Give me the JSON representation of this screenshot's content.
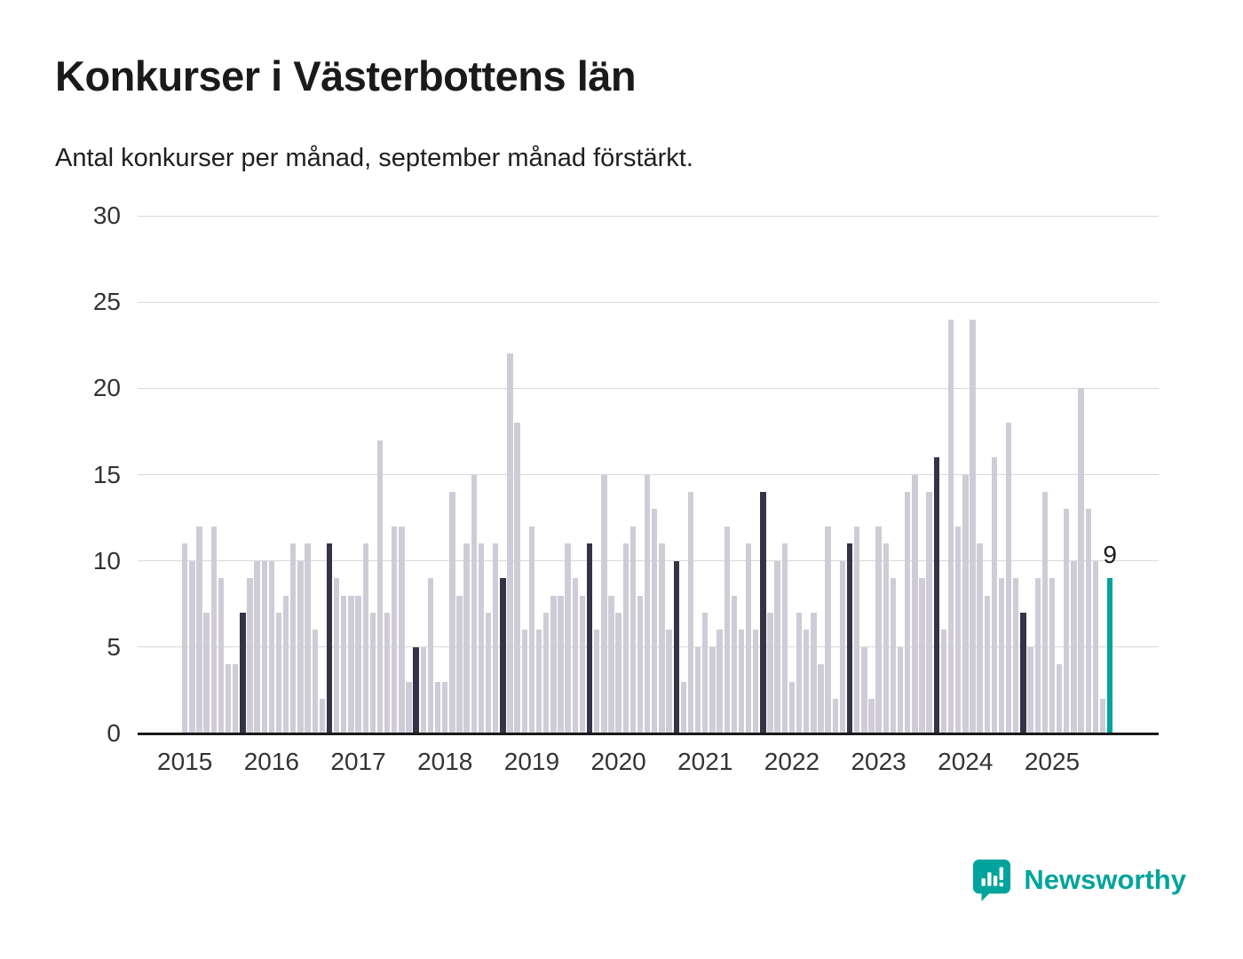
{
  "title": "Konkurser i Västerbottens län",
  "subtitle": "Antal konkurser per månad, september månad förstärkt.",
  "brand": {
    "name": "Newsworthy",
    "color": "#00a49c"
  },
  "chart_data": {
    "type": "bar",
    "title": "Konkurser i Västerbottens län",
    "subtitle": "Antal konkurser per månad, september månad förstärkt.",
    "xlabel": "",
    "ylabel": "Antal konkurser per månad",
    "ylim": [
      0,
      30
    ],
    "yticks": [
      0,
      5,
      10,
      15,
      20,
      25,
      30
    ],
    "xticks": [
      "2015",
      "2016",
      "2017",
      "2018",
      "2019",
      "2020",
      "2021",
      "2022",
      "2023",
      "2024",
      "2025"
    ],
    "x_unit": "month",
    "start_month": "2015-01",
    "end_month": "2025-09",
    "highlighted_month": "september",
    "values": [
      11,
      10,
      12,
      7,
      12,
      9,
      4,
      4,
      7,
      9,
      10,
      10,
      10,
      7,
      8,
      11,
      10,
      11,
      6,
      2,
      11,
      9,
      8,
      8,
      8,
      11,
      7,
      17,
      7,
      12,
      12,
      3,
      5,
      5,
      9,
      3,
      3,
      14,
      8,
      11,
      15,
      11,
      7,
      11,
      9,
      22,
      18,
      6,
      12,
      6,
      7,
      8,
      8,
      11,
      9,
      8,
      11,
      6,
      15,
      8,
      7,
      11,
      12,
      8,
      15,
      13,
      11,
      6,
      10,
      3,
      14,
      5,
      7,
      5,
      6,
      12,
      8,
      6,
      11,
      6,
      14,
      7,
      10,
      11,
      3,
      7,
      6,
      7,
      4,
      12,
      2,
      10,
      11,
      12,
      5,
      2,
      12,
      11,
      9,
      5,
      14,
      15,
      9,
      14,
      16,
      6,
      24,
      12,
      15,
      24,
      11,
      8,
      16,
      9,
      18,
      9,
      7,
      5,
      9,
      14,
      9,
      4,
      13,
      10,
      20,
      13,
      10,
      2,
      9
    ],
    "september_values": {
      "2015": 7,
      "2016": 11,
      "2017": 5,
      "2018": 9,
      "2019": 11,
      "2020": 10,
      "2021": 14,
      "2022": 11,
      "2023": 16,
      "2024": 7,
      "2025": 9
    },
    "last_value_label": "9",
    "legend": "off",
    "grid": "horizontal",
    "colors": {
      "default": "#cfccd7",
      "highlight": "#343447",
      "last": "#00a49c"
    }
  }
}
